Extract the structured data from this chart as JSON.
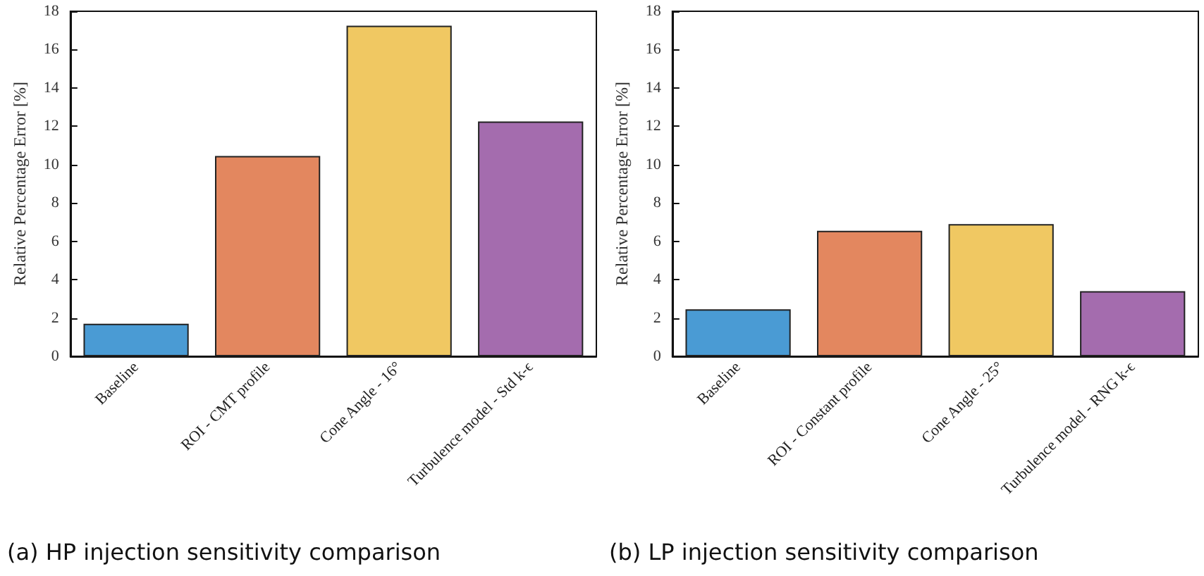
{
  "chart_data": [
    {
      "type": "bar",
      "title": "(a) HP injection sensitivity comparison",
      "ylabel": "Relative Percentage Error [%]",
      "categories": [
        "Baseline",
        "ROI - CMT profile",
        "Cone Angle - 16°",
        "Turbulence model - Std k-ϵ"
      ],
      "values": [
        1.7,
        10.45,
        17.25,
        12.25
      ],
      "colors": [
        "#4a9bd4",
        "#e3875f",
        "#f0c862",
        "#a46cae"
      ],
      "ylim": [
        0,
        18
      ],
      "yticks": [
        0,
        2,
        4,
        6,
        8,
        10,
        12,
        14,
        16,
        18
      ],
      "grid": false
    },
    {
      "type": "bar",
      "title": "(b) LP injection sensitivity comparison",
      "ylabel": "Relative Percentage Error [%]",
      "categories": [
        "Baseline",
        "ROI - Constant profile",
        "Cone Angle - 25°",
        "Turbulence model - RNG k-ϵ"
      ],
      "values": [
        2.45,
        6.55,
        6.9,
        3.4
      ],
      "colors": [
        "#4a9bd4",
        "#e3875f",
        "#f0c862",
        "#a46cae"
      ],
      "ylim": [
        0,
        18
      ],
      "yticks": [
        0,
        2,
        4,
        6,
        8,
        10,
        12,
        14,
        16,
        18
      ],
      "grid": false
    }
  ]
}
